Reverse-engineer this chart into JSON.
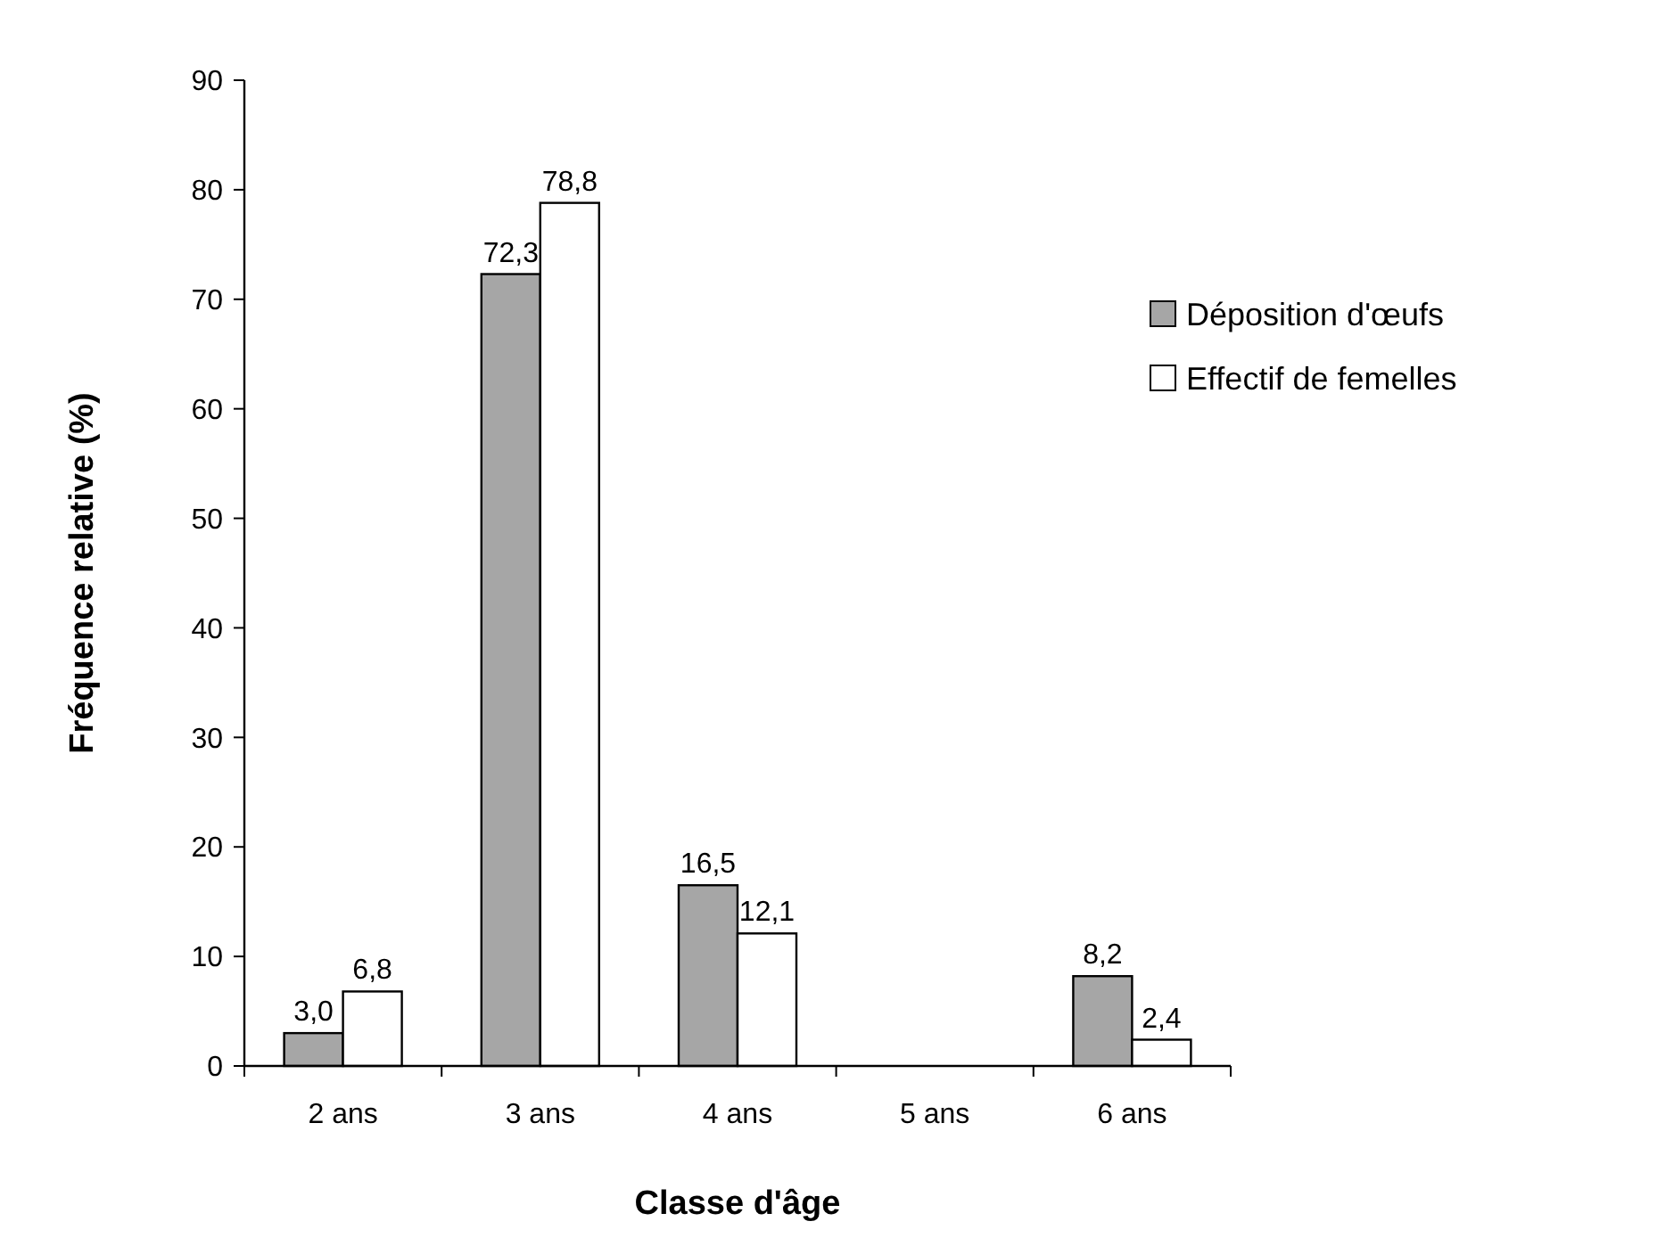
{
  "chart_data": {
    "type": "bar",
    "xlabel": "Classe d'âge",
    "ylabel": "Fréquence relative (%)",
    "categories": [
      "2 ans",
      "3 ans",
      "4 ans",
      "5 ans",
      "6 ans"
    ],
    "series": [
      {
        "name": "Déposition d'œufs",
        "color": "#a6a6a6",
        "values": [
          3.0,
          72.3,
          16.5,
          null,
          8.2
        ],
        "value_labels": [
          "3,0",
          "72,3",
          "16,5",
          null,
          "8,2"
        ]
      },
      {
        "name": "Effectif de femelles",
        "color": "#ffffff",
        "values": [
          6.8,
          78.8,
          12.1,
          null,
          2.4
        ],
        "value_labels": [
          "6,8",
          "78,8",
          "12,1",
          null,
          "2,4"
        ]
      }
    ],
    "ylim": [
      0,
      90
    ],
    "yticks": [
      0,
      10,
      20,
      30,
      40,
      50,
      60,
      70,
      80,
      90
    ],
    "legend": "right"
  }
}
